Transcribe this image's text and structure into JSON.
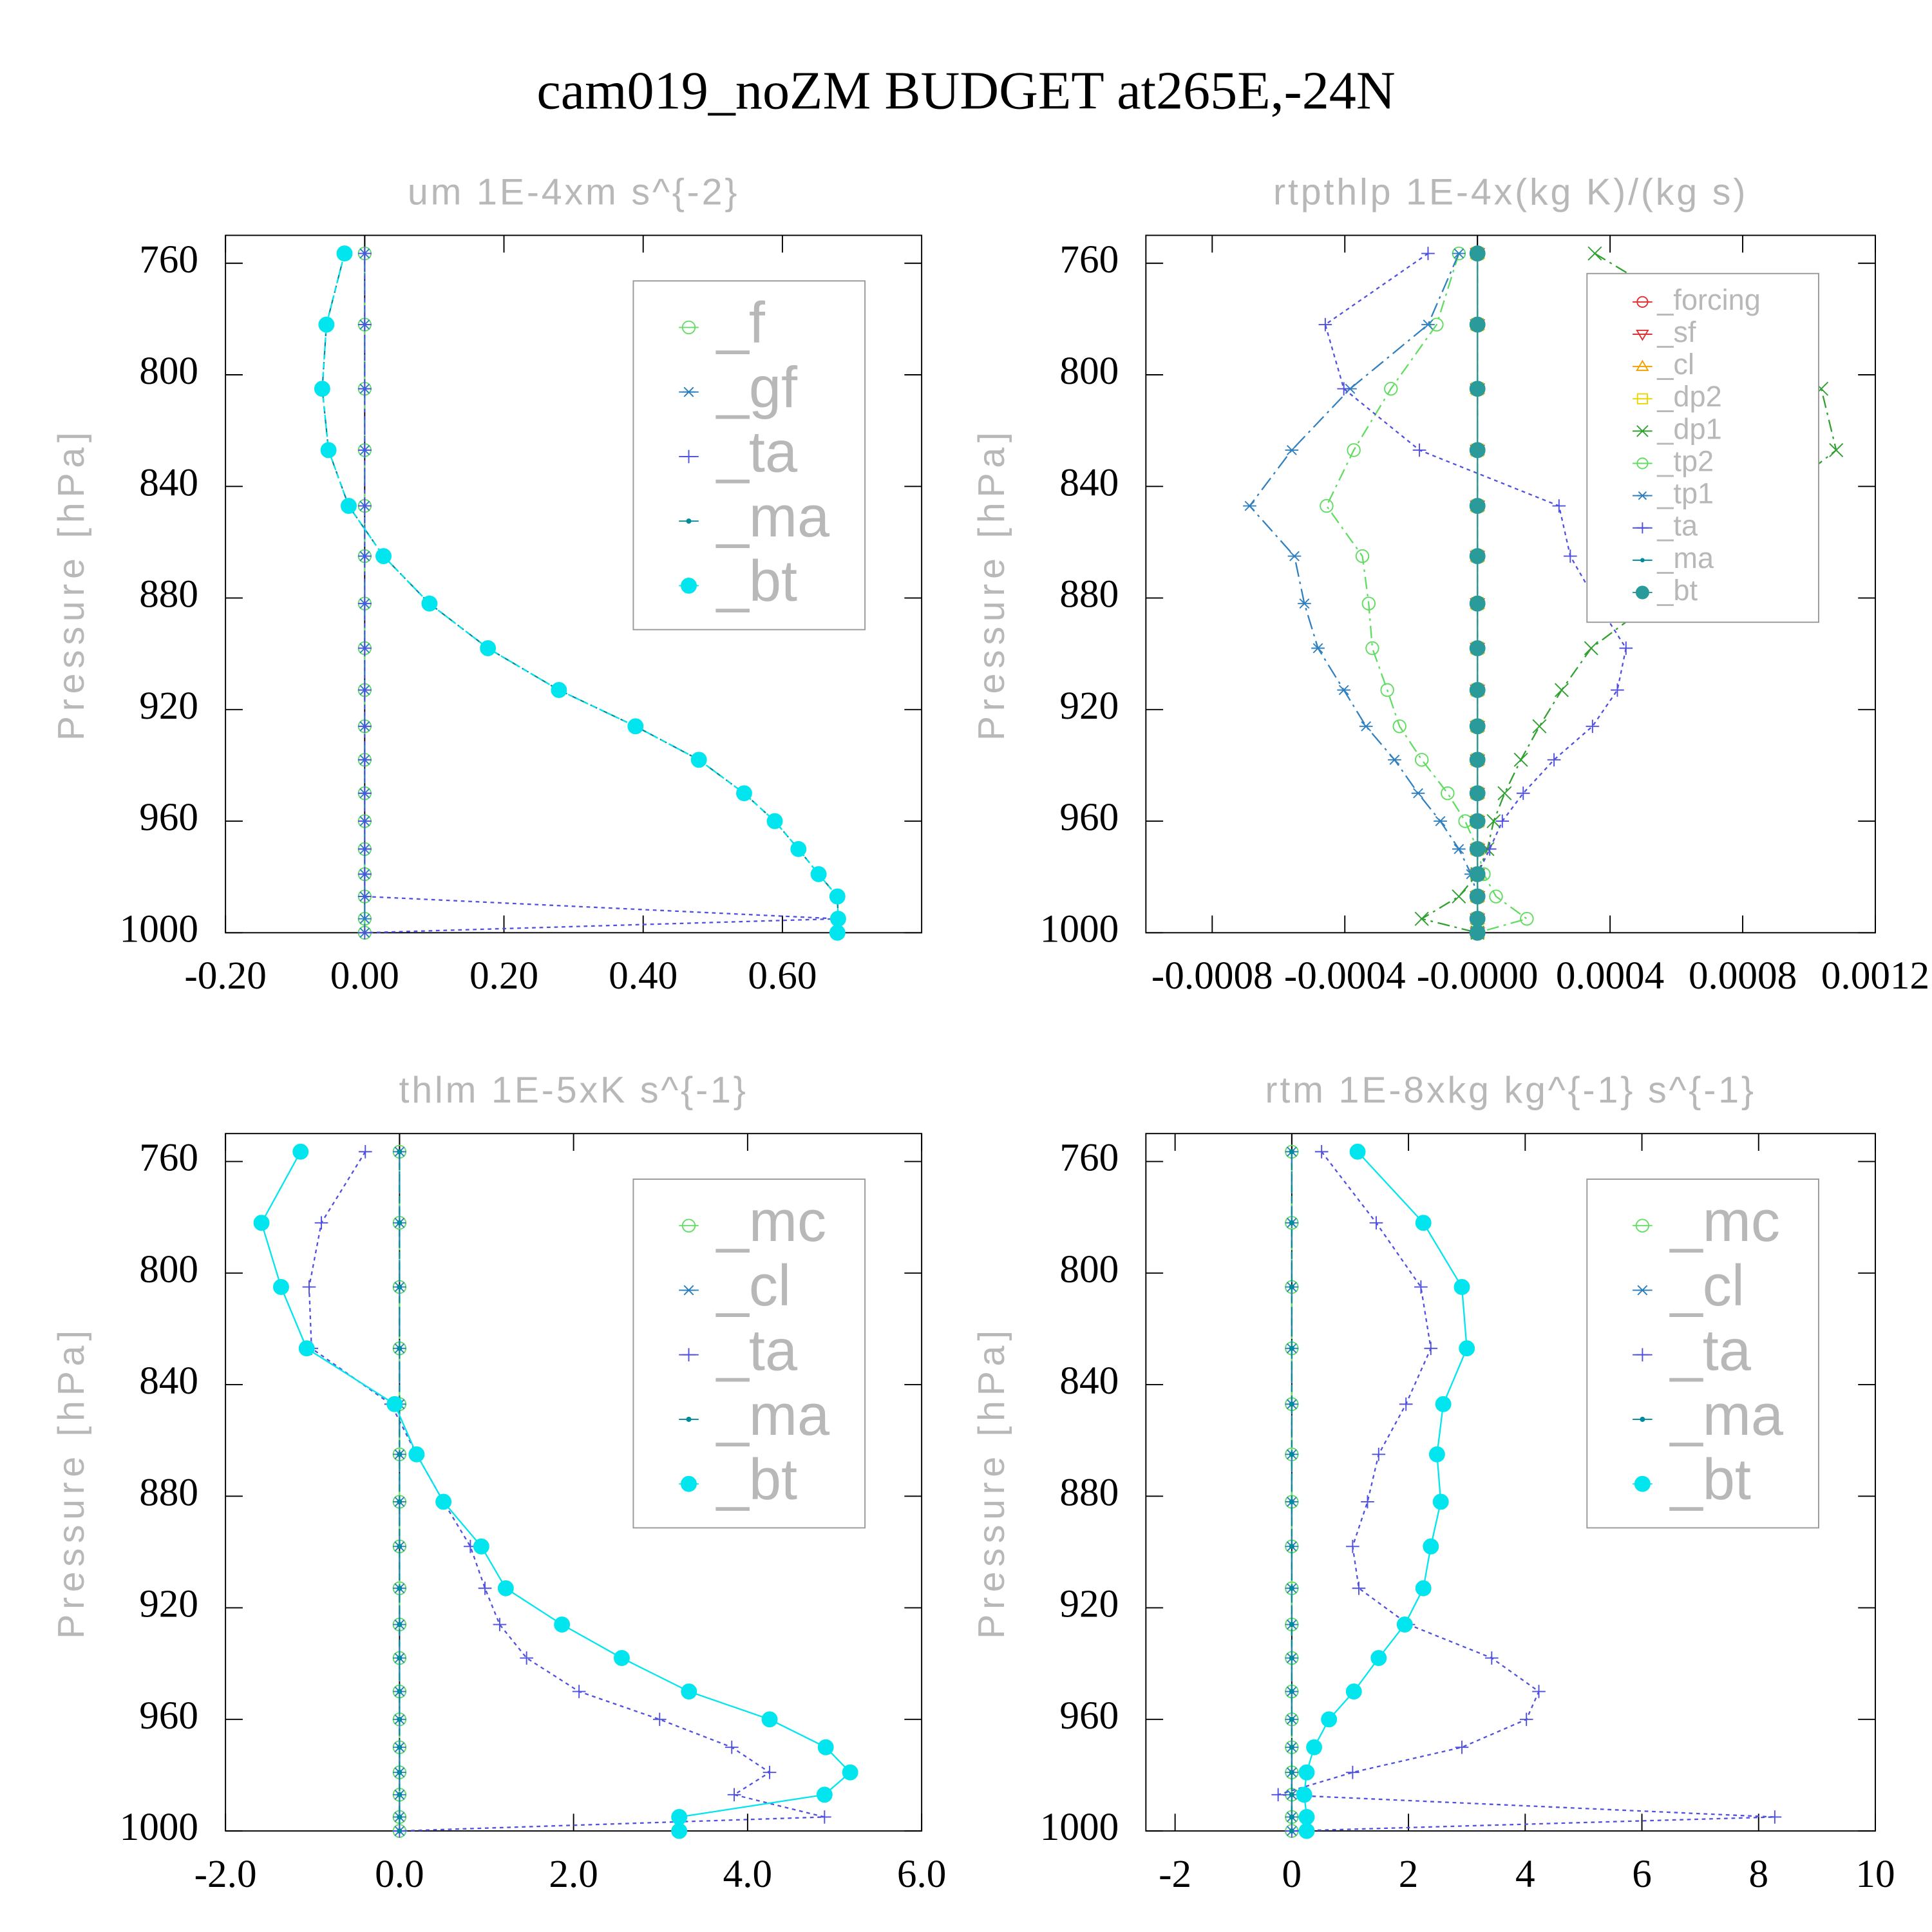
{
  "title": "cam019_noZM  BUDGET at265E,-24N",
  "chart_data": [
    {
      "type": "line",
      "title": "um  1E-4xm s^{-2}",
      "ylabel": "Pressure [hPa]",
      "y": [
        756.5,
        782,
        805,
        827,
        847,
        865,
        882,
        898,
        913,
        926,
        938,
        950,
        960,
        970,
        979,
        987,
        995,
        1000
      ],
      "ylim": [
        750,
        1000
      ],
      "invert_y": true,
      "yticks": [
        760,
        800,
        840,
        880,
        920,
        960,
        1000
      ],
      "xlim": [
        -0.2,
        0.8
      ],
      "xticks": [
        {
          "value": -0.2,
          "label": "-0.20"
        },
        {
          "value": 0,
          "label": "0.00"
        },
        {
          "value": 0.2,
          "label": "0.20"
        },
        {
          "value": 0.4,
          "label": "0.40"
        },
        {
          "value": 0.6,
          "label": "0.60"
        }
      ],
      "legend": "upper right",
      "series": [
        {
          "name": "_f",
          "color": "#66dd66",
          "marker": "circle-open",
          "dash": "8 4",
          "values": [
            0,
            0,
            0,
            0,
            0,
            0,
            0,
            0,
            0,
            0,
            0,
            0,
            0,
            0,
            0,
            0,
            0,
            0
          ]
        },
        {
          "name": "_gf",
          "color": "#2a7fbf",
          "marker": "asterisk",
          "dash": "12 4 2 4",
          "values": [
            0,
            0,
            0,
            0,
            0,
            0,
            0,
            0,
            0,
            0,
            0,
            0,
            0,
            0,
            0,
            0,
            0,
            0
          ]
        },
        {
          "name": "_ta",
          "color": "#5050e0",
          "marker": "plus",
          "dash": "3 3",
          "values": [
            0,
            0,
            0,
            0,
            0,
            0,
            0,
            0,
            0,
            0,
            0,
            0,
            0,
            0,
            0,
            0,
            0.68,
            0
          ]
        },
        {
          "name": "_ma",
          "color": "#008b9b",
          "marker": "dot",
          "dash": "6 3",
          "values": [
            -0.029,
            -0.055,
            -0.061,
            -0.052,
            -0.023,
            0.027,
            0.093,
            0.177,
            0.279,
            0.389,
            0.48,
            0.545,
            0.589,
            0.623,
            0.652,
            0.679,
            0.68,
            0.679
          ]
        },
        {
          "name": "_bt",
          "color": "#00e5ee",
          "marker": "circle-filled",
          "dash": "4 3",
          "values": [
            -0.029,
            -0.055,
            -0.061,
            -0.052,
            -0.023,
            0.027,
            0.093,
            0.177,
            0.279,
            0.389,
            0.48,
            0.545,
            0.589,
            0.623,
            0.652,
            0.679,
            0.68,
            0.679
          ]
        }
      ]
    },
    {
      "type": "line",
      "title": "rtpthlp  1E-4x(kg K)/(kg s)",
      "ylabel": "Pressure [hPa]",
      "y": [
        756.5,
        782,
        805,
        827,
        847,
        865,
        882,
        898,
        913,
        926,
        938,
        950,
        960,
        970,
        979,
        987,
        995,
        1000
      ],
      "ylim": [
        750,
        1000
      ],
      "invert_y": true,
      "yticks": [
        760,
        800,
        840,
        880,
        920,
        960,
        1000
      ],
      "xlim": [
        -0.001,
        0.0012
      ],
      "xticks": [
        -0.0008,
        -0.0004,
        {
          "value": 0,
          "label": "-0.0000"
        },
        0.0004,
        0.0008,
        0.0012
      ],
      "legend": "upper right",
      "series": [
        {
          "name": "_forcing",
          "color": "#e03030",
          "marker": "circle-open",
          "dash": "",
          "values": [
            0,
            0,
            0,
            0,
            0,
            0,
            0,
            0,
            0,
            0,
            0,
            0,
            0,
            0,
            0,
            0,
            0,
            0
          ]
        },
        {
          "name": "_sf",
          "color": "#e03030",
          "marker": "triangle-down",
          "dash": "6 3",
          "values": [
            0,
            0,
            0,
            0,
            0,
            0,
            0,
            0,
            0,
            0,
            0,
            0,
            0,
            0,
            0,
            0,
            0,
            0
          ]
        },
        {
          "name": "_cl",
          "color": "#f0a000",
          "marker": "triangle-up",
          "dash": "3 3",
          "values": [
            0,
            0,
            0,
            0,
            0,
            0,
            0,
            0,
            0,
            0,
            0,
            0,
            0,
            0,
            0,
            0,
            0,
            0
          ]
        },
        {
          "name": "_dp2",
          "color": "#e8d800",
          "marker": "square",
          "dash": "8 4",
          "values": [
            0,
            0,
            0,
            0,
            0,
            0,
            0,
            0,
            0,
            0,
            0,
            0,
            0,
            0,
            0,
            0,
            0,
            0
          ]
        },
        {
          "name": "_dp1",
          "color": "#30a030",
          "marker": "x",
          "dash": "10 4 2 4",
          "values": [
            0.000354,
            0.000709,
            0.001037,
            0.001082,
            0.000866,
            0.00069,
            0.000522,
            0.000343,
            0.000254,
            0.000187,
            0.000131,
            8.2e-05,
            4.9e-05,
            3e-05,
            0,
            -5.6e-05,
            -0.000168,
            0
          ]
        },
        {
          "name": "_tp2",
          "color": "#60dd60",
          "marker": "circle-open",
          "dash": "10 4 2 4",
          "values": [
            -5.6e-05,
            -0.000123,
            -0.000261,
            -0.000373,
            -0.000455,
            -0.000347,
            -0.000328,
            -0.000317,
            -0.000272,
            -0.000235,
            -0.000168,
            -9e-05,
            -3.7e-05,
            0,
            1.9e-05,
            5.6e-05,
            0.000149,
            0
          ]
        },
        {
          "name": "_tp1",
          "color": "#3080c0",
          "marker": "asterisk",
          "dash": "12 4 2 4",
          "values": [
            -5.6e-05,
            -0.000149,
            -0.000384,
            -0.00056,
            -0.000687,
            -0.000552,
            -0.000522,
            -0.000481,
            -0.000403,
            -0.000336,
            -0.00025,
            -0.000179,
            -0.000112,
            -5.6e-05,
            -1.9e-05,
            0,
            0,
            0
          ]
        },
        {
          "name": "_ta",
          "color": "#5050e0",
          "marker": "plus",
          "dash": "3 3",
          "values": [
            -0.000149,
            -0.000459,
            -0.000403,
            -0.000175,
            0.000246,
            0.00028,
            0.000362,
            0.000448,
            0.000422,
            0.000347,
            0.000231,
            0.000138,
            7.5e-05,
            3.7e-05,
            0,
            0,
            0,
            0
          ]
        },
        {
          "name": "_ma",
          "color": "#008b9b",
          "marker": "dot",
          "dash": "6 3",
          "values": [
            0,
            0,
            0,
            0,
            0,
            0,
            0,
            0,
            0,
            0,
            0,
            0,
            0,
            0,
            0,
            0,
            0,
            0
          ]
        },
        {
          "name": "_bt",
          "color": "#2a9a9a",
          "marker": "circle-filled",
          "dash": "",
          "values": [
            0,
            0,
            0,
            0,
            0,
            0,
            0,
            0,
            0,
            0,
            0,
            0,
            0,
            0,
            0,
            0,
            0,
            0
          ]
        }
      ]
    },
    {
      "type": "line",
      "title": "thlm  1E-5xK s^{-1}",
      "ylabel": "Pressure [hPa]",
      "y": [
        756.5,
        782,
        805,
        827,
        847,
        865,
        882,
        898,
        913,
        926,
        938,
        950,
        960,
        970,
        979,
        987,
        995,
        1000
      ],
      "ylim": [
        750,
        1000
      ],
      "invert_y": true,
      "yticks": [
        760,
        800,
        840,
        880,
        920,
        960,
        1000
      ],
      "xlim": [
        -2,
        6
      ],
      "xticks": [
        {
          "value": -2,
          "label": "-2.0"
        },
        {
          "value": 0,
          "label": "0.0"
        },
        {
          "value": 2,
          "label": "2.0"
        },
        {
          "value": 4,
          "label": "4.0"
        },
        {
          "value": 6,
          "label": "6.0"
        }
      ],
      "legend": "upper right",
      "series": [
        {
          "name": "_mc",
          "color": "#66dd66",
          "marker": "circle-open",
          "dash": "8 4",
          "values": [
            0,
            0,
            0,
            0,
            0,
            0,
            0,
            0,
            0,
            0,
            0,
            0,
            0,
            0,
            0,
            0,
            0,
            0
          ]
        },
        {
          "name": "_cl",
          "color": "#2a7fbf",
          "marker": "asterisk",
          "dash": "12 4 2 4",
          "values": [
            0,
            0,
            0,
            0,
            0,
            0,
            0,
            0,
            0,
            0,
            0,
            0,
            0,
            0,
            0,
            0,
            0,
            0
          ]
        },
        {
          "name": "_ta",
          "color": "#5050e0",
          "marker": "plus",
          "dash": "3 3",
          "values": [
            -0.393,
            -0.898,
            -1.039,
            -1.011,
            -0.098,
            0.196,
            0.505,
            0.814,
            0.982,
            1.151,
            1.46,
            2.063,
            2.989,
            3.818,
            4.253,
            3.846,
            4.884,
            0
          ]
        },
        {
          "name": "_ma",
          "color": "#008b9b",
          "marker": "dot",
          "dash": "6 3",
          "values": [
            0,
            0,
            0,
            0,
            0,
            0,
            0,
            0,
            0,
            0,
            0,
            0,
            0,
            0,
            0,
            0,
            0,
            0
          ]
        },
        {
          "name": "_bt",
          "color": "#00e5ee",
          "marker": "circle-filled",
          "dash": "",
          "values": [
            -1.137,
            -1.586,
            -1.361,
            -1.067,
            -0.056,
            0.196,
            0.505,
            0.94,
            1.221,
            1.867,
            2.554,
            3.326,
            4.253,
            4.898,
            5.179,
            4.884,
            3.214,
            3.214
          ]
        }
      ]
    },
    {
      "type": "line",
      "title": "rtm  1E-8xkg kg^{-1} s^{-1}",
      "ylabel": "Pressure [hPa]",
      "y": [
        756.5,
        782,
        805,
        827,
        847,
        865,
        882,
        898,
        913,
        926,
        938,
        950,
        960,
        970,
        979,
        987,
        995,
        1000
      ],
      "ylim": [
        750,
        1000
      ],
      "invert_y": true,
      "yticks": [
        760,
        800,
        840,
        880,
        920,
        960,
        1000
      ],
      "xlim": [
        -2.5,
        10
      ],
      "xticks": [
        -2,
        0,
        2,
        4,
        6,
        8,
        10
      ],
      "legend": "upper right",
      "series": [
        {
          "name": "_mc",
          "color": "#66dd66",
          "marker": "circle-open",
          "dash": "8 4",
          "values": [
            0,
            0,
            0,
            0,
            0,
            0,
            0,
            0,
            0,
            0,
            0,
            0,
            0,
            0,
            0,
            0,
            0,
            0
          ]
        },
        {
          "name": "_cl",
          "color": "#2a7fbf",
          "marker": "asterisk",
          "dash": "12 4 2 4",
          "values": [
            0,
            0,
            0,
            0,
            0,
            0,
            0,
            0,
            0,
            0,
            0,
            0,
            0,
            0,
            0,
            0,
            0,
            0
          ]
        },
        {
          "name": "_ta",
          "color": "#5050e0",
          "marker": "plus",
          "dash": "3 3",
          "values": [
            0.511,
            1.447,
            2.213,
            2.383,
            1.957,
            1.489,
            1.298,
            1.043,
            1.149,
            2.0,
            3.426,
            4.234,
            4.021,
            2.915,
            1.043,
            -0.234,
            8.277,
            0
          ]
        },
        {
          "name": "_ma",
          "color": "#008b9b",
          "marker": "dot",
          "dash": "6 3",
          "values": [
            0,
            0,
            0,
            0,
            0,
            0,
            0,
            0,
            0,
            0,
            0,
            0,
            0,
            0,
            0,
            0,
            0,
            0
          ]
        },
        {
          "name": "_bt",
          "color": "#00e5ee",
          "marker": "circle-filled",
          "dash": "",
          "values": [
            1.128,
            2.255,
            2.915,
            3.0,
            2.596,
            2.489,
            2.553,
            2.383,
            2.255,
            1.936,
            1.489,
            1.064,
            0.638,
            0.383,
            0.255,
            0.213,
            0.255,
            0.255
          ]
        }
      ]
    }
  ]
}
